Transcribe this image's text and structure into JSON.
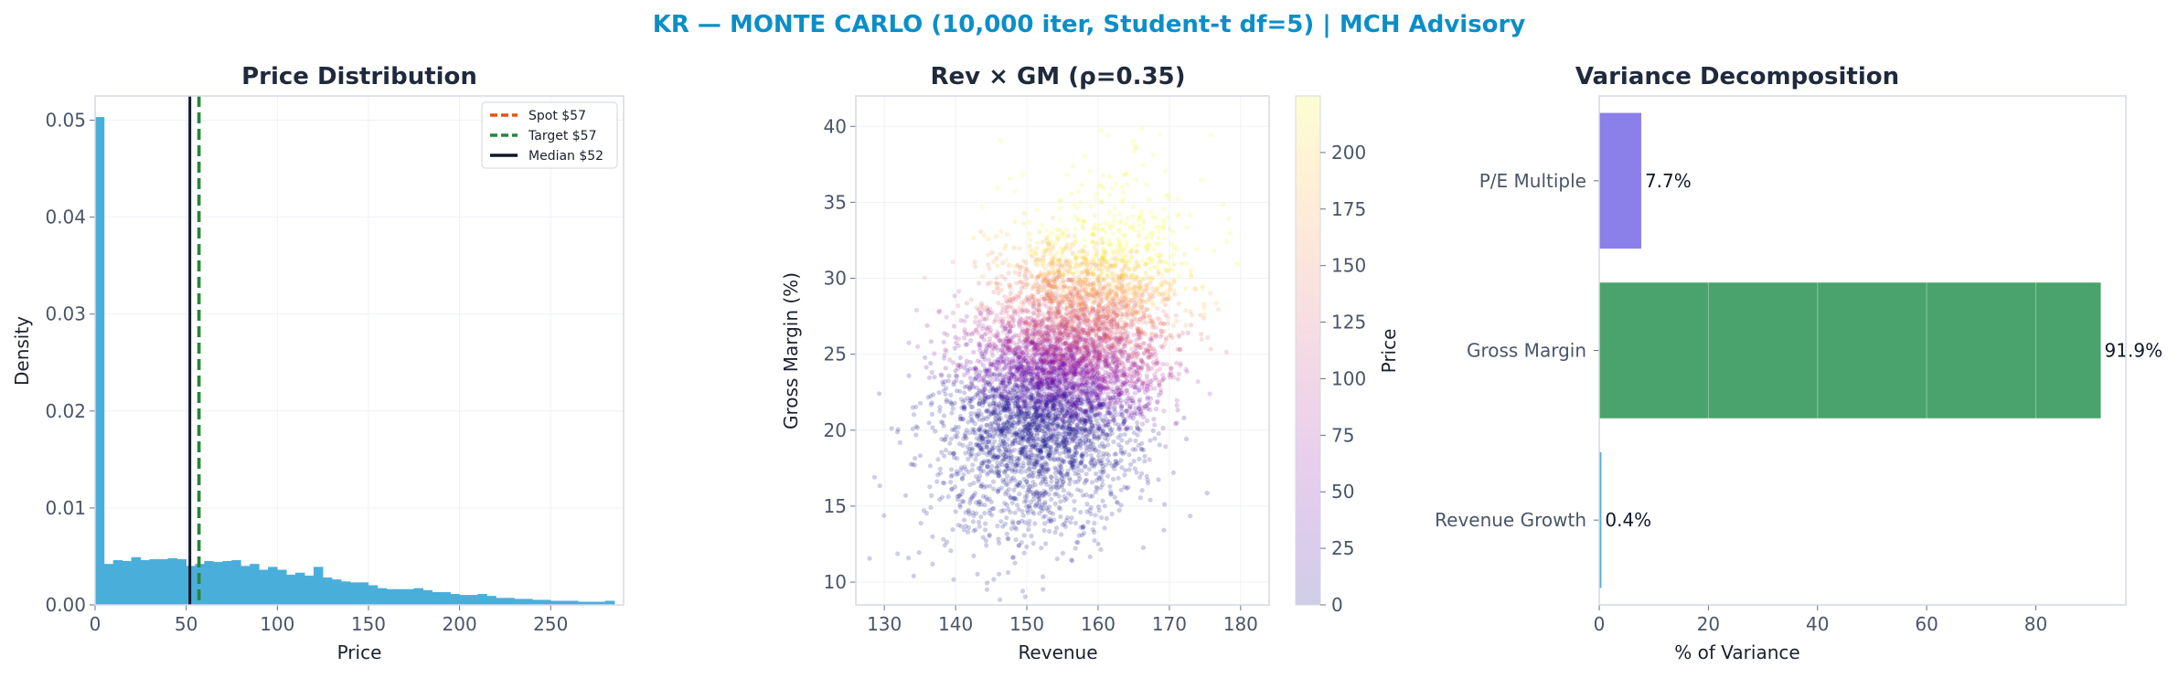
{
  "suptitle": "KR — MONTE CARLO (10,000 iter, Student-t df=5) | MCH Advisory",
  "colors": {
    "title": "#0b8ec8",
    "panel_title": "#1f2a3c",
    "tick_text": "#4a5568",
    "axis": "#d3d8e0",
    "grid": "#eef1f5",
    "hist": "#4aaedb",
    "spot": "#e8530f",
    "target": "#1e8a3c",
    "median": "#111827"
  },
  "chart_data": [
    {
      "type": "bar",
      "title": "Price Distribution",
      "xlabel": "Price",
      "ylabel": "Density",
      "xlim": [
        0,
        290
      ],
      "ylim": [
        0,
        0.0525
      ],
      "xticks": [
        "0",
        "50",
        "100",
        "150",
        "200",
        "250"
      ],
      "xtick_values": [
        0,
        50,
        100,
        150,
        200,
        250
      ],
      "yticks": [
        "0.00",
        "0.01",
        "0.02",
        "0.03",
        "0.04",
        "0.05"
      ],
      "ytick_values": [
        0,
        0.01,
        0.02,
        0.03,
        0.04,
        0.05
      ],
      "bin_width": 5,
      "bin_start": 0,
      "values": [
        0.0503,
        0.0042,
        0.0046,
        0.0045,
        0.0049,
        0.0046,
        0.0047,
        0.0047,
        0.0048,
        0.0047,
        0.004,
        0.0042,
        0.0045,
        0.0044,
        0.0045,
        0.0046,
        0.004,
        0.0042,
        0.0036,
        0.0039,
        0.0036,
        0.0031,
        0.0033,
        0.003,
        0.0039,
        0.0028,
        0.0026,
        0.0024,
        0.0023,
        0.0023,
        0.002,
        0.0017,
        0.0016,
        0.0016,
        0.0016,
        0.0017,
        0.0015,
        0.0013,
        0.0013,
        0.0011,
        0.001,
        0.001,
        0.0011,
        0.0009,
        0.0007,
        0.0007,
        0.0006,
        0.0006,
        0.0005,
        0.0005,
        0.0004,
        0.0004,
        0.0004,
        0.0003,
        0.0003,
        0.0003,
        0.0004
      ],
      "lines": [
        {
          "name": "Spot $57",
          "x": 57,
          "style": "dashed",
          "color": "#e8530f"
        },
        {
          "name": "Target $57",
          "x": 57,
          "style": "dashed",
          "color": "#1e8a3c"
        },
        {
          "name": "Median $52",
          "x": 52,
          "style": "solid",
          "color": "#111827"
        }
      ],
      "legend": "top-right",
      "grid": true
    },
    {
      "type": "scatter",
      "title": "Rev × GM (ρ=0.35)",
      "xlabel": "Revenue",
      "ylabel": "Gross Margin (%)",
      "xlim": [
        126,
        184
      ],
      "ylim": [
        8.5,
        42
      ],
      "xticks": [
        "130",
        "140",
        "150",
        "160",
        "170",
        "180"
      ],
      "xtick_values": [
        130,
        140,
        150,
        160,
        170,
        180
      ],
      "yticks": [
        "10",
        "15",
        "20",
        "25",
        "30",
        "35",
        "40"
      ],
      "ytick_values": [
        10,
        15,
        20,
        25,
        30,
        35,
        40
      ],
      "n_points": 10000,
      "distribution": {
        "revenue_mean": 155,
        "revenue_sd": 7.5,
        "gm_mean": 24,
        "gm_sd": 4.7,
        "rho": 0.35
      },
      "colorbar": {
        "label": "Price",
        "range": [
          0,
          225
        ],
        "ticks": [
          "0",
          "25",
          "50",
          "75",
          "100",
          "125",
          "150",
          "175",
          "200"
        ],
        "tick_values": [
          0,
          25,
          50,
          75,
          100,
          125,
          150,
          175,
          200
        ],
        "colormap": "plasma",
        "alpha": 0.2
      },
      "grid": true
    },
    {
      "type": "bar",
      "orientation": "horizontal",
      "title": "Variance Decomposition",
      "xlabel": "% of Variance",
      "ylabel": "",
      "xlim": [
        0,
        96.5
      ],
      "xticks": [
        "0",
        "20",
        "40",
        "60",
        "80"
      ],
      "xtick_values": [
        0,
        20,
        40,
        60,
        80
      ],
      "categories": [
        "P/E Multiple",
        "Gross Margin",
        "Revenue Growth"
      ],
      "values": [
        7.7,
        91.9,
        0.4
      ],
      "labels": [
        "7.7%",
        "91.9%",
        "0.4%"
      ],
      "bar_colors": [
        "#8b7fea",
        "#4aa36c",
        "#4aaedb"
      ],
      "grid": true
    }
  ]
}
